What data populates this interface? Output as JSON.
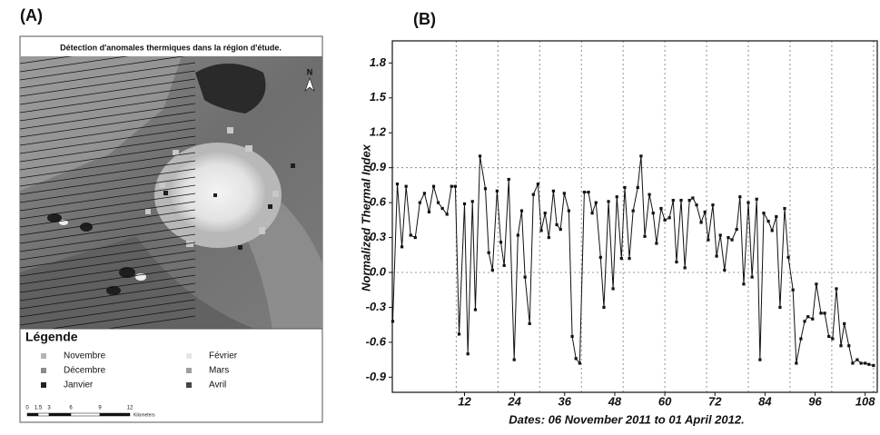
{
  "panel_a": {
    "label": "(A)",
    "title": "Détection d'anomales thermiques dans la région d'étude.",
    "north": "N",
    "legend": {
      "title": "Légende",
      "items": [
        {
          "label": "Novembre",
          "color": "#b4b4b4"
        },
        {
          "label": "Décembre",
          "color": "#8c8c8c"
        },
        {
          "label": "Janvier",
          "color": "#222222"
        },
        {
          "label": "Février",
          "color": "#e6e6e6"
        },
        {
          "label": "Mars",
          "color": "#a0a0a0"
        },
        {
          "label": "Avril",
          "color": "#444444"
        }
      ]
    },
    "scale": {
      "labels": [
        "0",
        "1.5",
        "3",
        "6",
        "9",
        "12"
      ],
      "unit": "Kilometers"
    }
  },
  "chart_data": {
    "type": "line",
    "label": "(B)",
    "y_label": "Normalized Thermal Index",
    "x_label": "Dates: 06 November 2011 to 01 April  2012.",
    "series": [
      {
        "color": "#111111",
        "x": [
          -5.2,
          -4.1,
          -3.0,
          -2.0,
          -0.9,
          0.2,
          1.3,
          2.4,
          3.5,
          4.6,
          5.7,
          6.7,
          7.8,
          8.9,
          9.8,
          10.7,
          12.0,
          12.8,
          13.9,
          14.6,
          15.7,
          17.0,
          17.8,
          18.7,
          19.8,
          20.7,
          21.5,
          22.6,
          23.9,
          24.8,
          25.7,
          26.5,
          27.6,
          28.5,
          29.6,
          30.4,
          31.3,
          32.2,
          33.3,
          34.1,
          35.0,
          35.9,
          37.0,
          37.8,
          38.7,
          39.6,
          40.7,
          41.7,
          42.6,
          43.5,
          44.6,
          45.4,
          46.5,
          47.6,
          48.5,
          49.6,
          50.4,
          51.5,
          52.4,
          53.5,
          54.3,
          55.2,
          56.3,
          57.2,
          58.0,
          59.1,
          60.0,
          61.1,
          62.0,
          62.8,
          63.9,
          64.8,
          65.9,
          66.7,
          67.6,
          68.7,
          69.6,
          70.4,
          71.5,
          72.4,
          73.3,
          74.3,
          75.2,
          76.1,
          77.2,
          78.0,
          78.9,
          80.0,
          80.9,
          82.0,
          82.8,
          83.7,
          84.8,
          85.7,
          86.7,
          87.6,
          88.7,
          89.6,
          90.7,
          91.5,
          92.6,
          93.5,
          94.3,
          95.4,
          96.3,
          97.4,
          98.3,
          99.3,
          100.2,
          101.1,
          102.2,
          103.0,
          104.1,
          105.0,
          106.1,
          107.0,
          108.0,
          108.9,
          110.0
        ],
        "values": [
          -0.42,
          0.76,
          0.22,
          0.74,
          0.32,
          0.3,
          0.6,
          0.68,
          0.52,
          0.74,
          0.6,
          0.55,
          0.5,
          0.74,
          0.74,
          -0.53,
          0.59,
          -0.7,
          0.61,
          -0.32,
          1.0,
          0.72,
          0.17,
          0.02,
          0.7,
          0.26,
          0.06,
          0.8,
          -0.75,
          0.32,
          0.53,
          -0.04,
          -0.44,
          0.67,
          0.76,
          0.36,
          0.51,
          0.3,
          0.7,
          0.41,
          0.37,
          0.68,
          0.53,
          -0.55,
          -0.74,
          -0.78,
          0.69,
          0.69,
          0.51,
          0.6,
          0.13,
          -0.3,
          0.61,
          -0.14,
          0.65,
          0.12,
          0.73,
          0.12,
          0.53,
          0.73,
          1.0,
          0.31,
          0.67,
          0.51,
          0.25,
          0.55,
          0.45,
          0.47,
          0.62,
          0.09,
          0.62,
          0.04,
          0.62,
          0.64,
          0.58,
          0.43,
          0.52,
          0.28,
          0.58,
          0.14,
          0.32,
          0.02,
          0.3,
          0.28,
          0.37,
          0.65,
          -0.1,
          0.6,
          -0.04,
          0.63,
          -0.75,
          0.51,
          0.44,
          0.36,
          0.48,
          -0.3,
          0.55,
          0.13,
          -0.15,
          -0.78,
          -0.57,
          -0.42,
          -0.38,
          -0.4,
          -0.1,
          -0.35,
          -0.35,
          -0.55,
          -0.57,
          -0.14,
          -0.63,
          -0.44,
          -0.63,
          -0.78,
          -0.75,
          -0.78,
          -0.78,
          -0.79,
          -0.8
        ]
      }
    ],
    "xlim": [
      -5.3,
      110.9
    ],
    "ylim": [
      -1.03,
      1.99
    ],
    "xticks": [
      12,
      24,
      36,
      48,
      60,
      72,
      84,
      96,
      108
    ],
    "yticks": [
      1.8,
      1.5,
      1.2,
      0.9,
      0.6,
      0.3,
      {
        "value": 0,
        "label": "0.0"
      },
      -0.3,
      -0.6,
      -0.9
    ],
    "xgrid": [
      10,
      20,
      30,
      40,
      50,
      60,
      70,
      80,
      90,
      100,
      110
    ],
    "ygrid": [
      0.9,
      0
    ]
  }
}
